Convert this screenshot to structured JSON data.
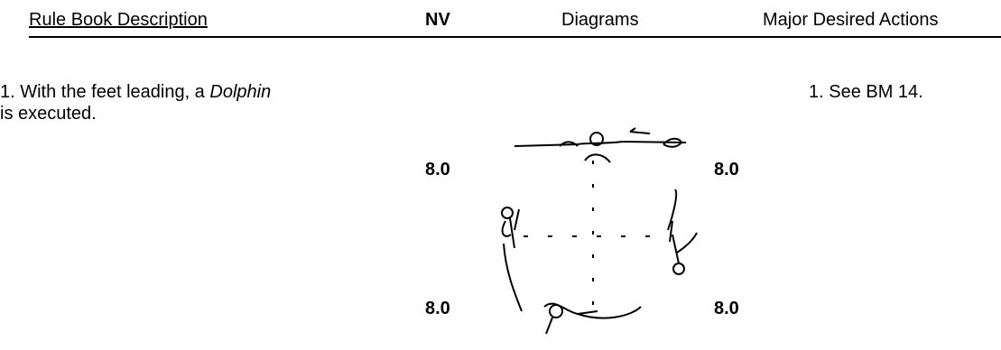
{
  "header": {
    "description": "Rule Book Description",
    "nv": "NV",
    "diagrams": "Diagrams",
    "actions": "Major Desired Actions"
  },
  "description": {
    "lead": "1.  With the feet leading, a ",
    "emphasis": "Dolphin",
    "tail": "is executed."
  },
  "nv_values": [
    "8.0",
    "8.0",
    "8.0",
    "8.0"
  ],
  "actions": [
    "1.  See BM 14."
  ]
}
